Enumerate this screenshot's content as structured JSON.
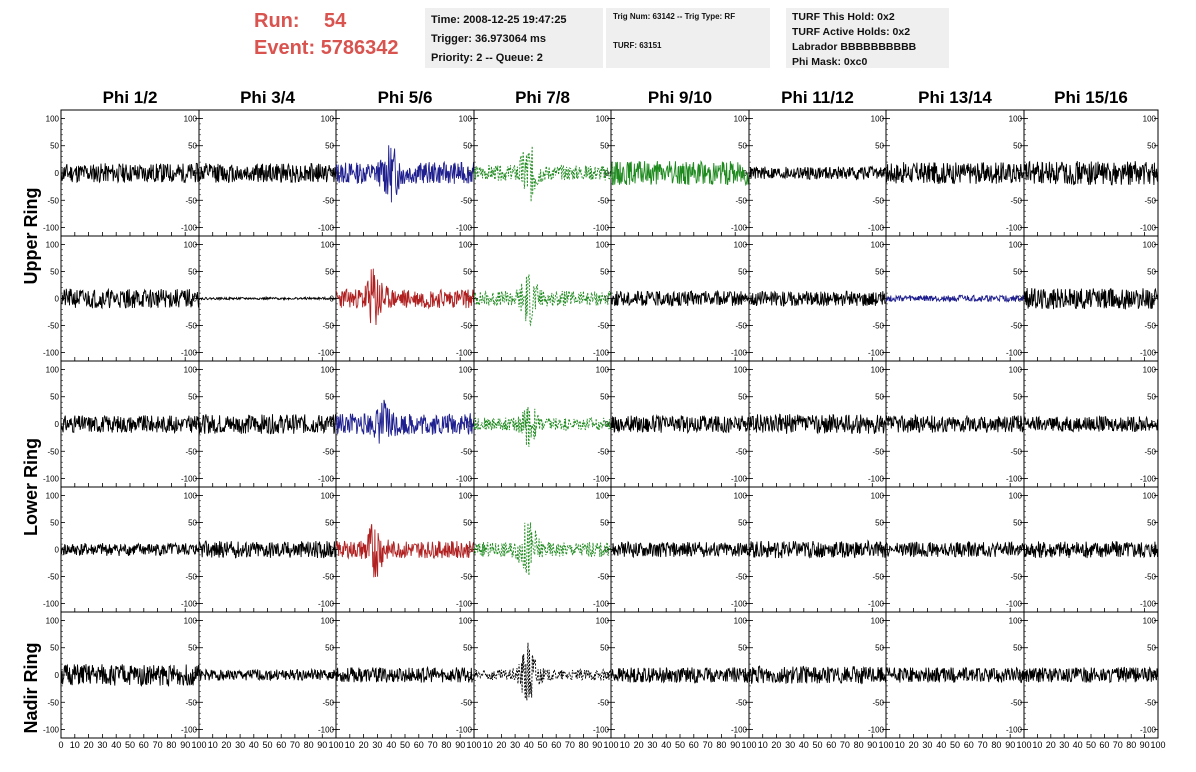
{
  "header": {
    "run_label": "Run:",
    "run_value": "54",
    "event_label": "Event:",
    "event_value": "5786342",
    "time_line": "Time: 2008-12-25 19:47:25",
    "trigger_line": "Trigger: 36.973064 ms",
    "priority_line": "Priority: 2 -- Queue: 2",
    "trig_num_line": "Trig Num: 63142 -- Trig Type: RF",
    "turf_line": "TURF: 63151",
    "turf_this_hold": "TURF This Hold: 0x2",
    "turf_active_holds": "TURF Active Holds: 0x2",
    "labrador": "Labrador BBBBBBBBBB",
    "phi_mask": "Phi Mask: 0xc0"
  },
  "chart_data": {
    "type": "line",
    "description_columns": [
      "Phi 1/2",
      "Phi 3/4",
      "Phi 5/6",
      "Phi 7/8",
      "Phi 9/10",
      "Phi 11/12",
      "Phi 13/14",
      "Phi 15/16"
    ],
    "ring_labels": [
      "Upper Ring",
      "Lower Ring",
      "Nadir Ring"
    ],
    "y_ticks": [
      "-100",
      "-50",
      "0",
      "50",
      "100"
    ],
    "ylim": [
      -110,
      110
    ],
    "x_ticks": [
      "0",
      "10",
      "20",
      "30",
      "40",
      "50",
      "60",
      "70",
      "80",
      "90",
      "100"
    ],
    "xlim": [
      0,
      100
    ],
    "colors": {
      "black": "#000000",
      "blue": "#1f1f8f",
      "red": "#b02020",
      "green": "#1e8a1e"
    },
    "panels": [
      [
        {
          "color": "black",
          "style": "solid",
          "amp": 18,
          "seed": 11
        },
        {
          "color": "black",
          "style": "solid",
          "amp": 18,
          "seed": 12
        },
        {
          "color": "blue",
          "style": "solid",
          "amp": 20,
          "burst": [
            40,
            35
          ],
          "seed": 13
        },
        {
          "color": "green",
          "style": "dashed",
          "amp": 14,
          "burst": [
            40,
            45
          ],
          "seed": 14
        },
        {
          "color": "green",
          "style": "solid",
          "amp": 22,
          "seed": 15
        },
        {
          "color": "black",
          "style": "solid",
          "amp": 12,
          "seed": 16
        },
        {
          "color": "black",
          "style": "solid",
          "amp": 20,
          "seed": 17
        },
        {
          "color": "black",
          "style": "solid",
          "amp": 22,
          "seed": 18
        }
      ],
      [
        {
          "color": "black",
          "style": "solid",
          "amp": 18,
          "seed": 21
        },
        {
          "color": "black",
          "style": "solid",
          "amp": 2,
          "seed": 22
        },
        {
          "color": "red",
          "style": "solid",
          "amp": 18,
          "burst": [
            28,
            45
          ],
          "seed": 23
        },
        {
          "color": "green",
          "style": "dashed",
          "amp": 14,
          "burst": [
            40,
            40
          ],
          "seed": 24
        },
        {
          "color": "black",
          "style": "solid",
          "amp": 14,
          "seed": 25
        },
        {
          "color": "black",
          "style": "solid",
          "amp": 14,
          "seed": 26
        },
        {
          "color": "blue",
          "style": "solid",
          "amp": 6,
          "seed": 27
        },
        {
          "color": "black",
          "style": "solid",
          "amp": 20,
          "seed": 28
        }
      ],
      [
        {
          "color": "black",
          "style": "solid",
          "amp": 16,
          "seed": 31
        },
        {
          "color": "black",
          "style": "solid",
          "amp": 18,
          "seed": 32
        },
        {
          "color": "blue",
          "style": "solid",
          "amp": 20,
          "burst": [
            35,
            25
          ],
          "seed": 33
        },
        {
          "color": "green",
          "style": "dashed",
          "amp": 12,
          "burst": [
            40,
            30
          ],
          "seed": 34
        },
        {
          "color": "black",
          "style": "solid",
          "amp": 16,
          "seed": 35
        },
        {
          "color": "black",
          "style": "solid",
          "amp": 18,
          "seed": 36
        },
        {
          "color": "black",
          "style": "solid",
          "amp": 16,
          "seed": 37
        },
        {
          "color": "black",
          "style": "solid",
          "amp": 14,
          "seed": 38
        }
      ],
      [
        {
          "color": "black",
          "style": "solid",
          "amp": 12,
          "seed": 41
        },
        {
          "color": "black",
          "style": "solid",
          "amp": 16,
          "seed": 42
        },
        {
          "color": "red",
          "style": "solid",
          "amp": 16,
          "burst": [
            28,
            40
          ],
          "seed": 43
        },
        {
          "color": "green",
          "style": "dashed",
          "amp": 14,
          "burst": [
            40,
            45
          ],
          "seed": 44
        },
        {
          "color": "black",
          "style": "solid",
          "amp": 14,
          "seed": 45
        },
        {
          "color": "black",
          "style": "solid",
          "amp": 16,
          "seed": 46
        },
        {
          "color": "black",
          "style": "solid",
          "amp": 14,
          "seed": 47
        },
        {
          "color": "black",
          "style": "solid",
          "amp": 16,
          "seed": 48
        }
      ],
      [
        {
          "color": "black",
          "style": "solid",
          "amp": 20,
          "seed": 51
        },
        {
          "color": "black",
          "style": "solid",
          "amp": 10,
          "seed": 52
        },
        {
          "color": "black",
          "style": "solid",
          "amp": 14,
          "seed": 53
        },
        {
          "color": "black",
          "style": "dashed",
          "amp": 10,
          "burst": [
            40,
            55
          ],
          "seed": 54
        },
        {
          "color": "black",
          "style": "solid",
          "amp": 14,
          "seed": 55
        },
        {
          "color": "black",
          "style": "solid",
          "amp": 16,
          "seed": 56
        },
        {
          "color": "black",
          "style": "solid",
          "amp": 14,
          "seed": 57
        },
        {
          "color": "black",
          "style": "solid",
          "amp": 14,
          "seed": 58
        }
      ]
    ]
  }
}
